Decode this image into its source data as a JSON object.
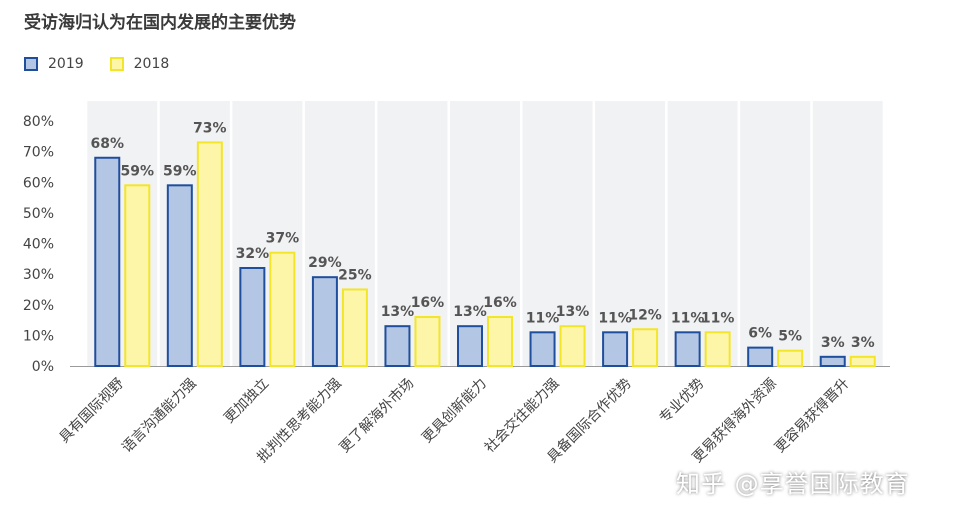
{
  "title": "受访海归认为在国内发展的主要优势",
  "watermark": "知乎 @享誉国际教育",
  "chart_data": {
    "type": "bar",
    "title": "受访海归认为在国内发展的主要优势",
    "ylim": [
      0,
      80
    ],
    "yticks": [
      "0%",
      "10%",
      "20%",
      "30%",
      "40%",
      "50%",
      "60%",
      "70%",
      "80%"
    ],
    "legend_position": "top-left",
    "grid": false,
    "categories": [
      "具有国际视野",
      "语言沟通能力强",
      "更加独立",
      "批判性思考能力强",
      "更了解海外市场",
      "更具创新能力",
      "社会交往能力强",
      "具备国际合作优势",
      "专业优势",
      "更易获得海外资源",
      "更容易获得晋升"
    ],
    "series": [
      {
        "name": "2019",
        "values": [
          68,
          59,
          32,
          29,
          13,
          13,
          11,
          11,
          11,
          6,
          3
        ],
        "labels": [
          "68%",
          "59%",
          "32%",
          "29%",
          "13%",
          "13%",
          "11%",
          "11%",
          "11%",
          "6%",
          "3%"
        ],
        "color": "#b3c7e5",
        "border": "#1f4e9c"
      },
      {
        "name": "2018",
        "values": [
          59,
          73,
          37,
          25,
          16,
          16,
          13,
          12,
          11,
          5,
          3
        ],
        "labels": [
          "59%",
          "73%",
          "37%",
          "25%",
          "16%",
          "16%",
          "13%",
          "12%",
          "11%",
          "5%",
          "3%"
        ],
        "color": "#fdf6a8",
        "border": "#f3e52a"
      }
    ]
  }
}
